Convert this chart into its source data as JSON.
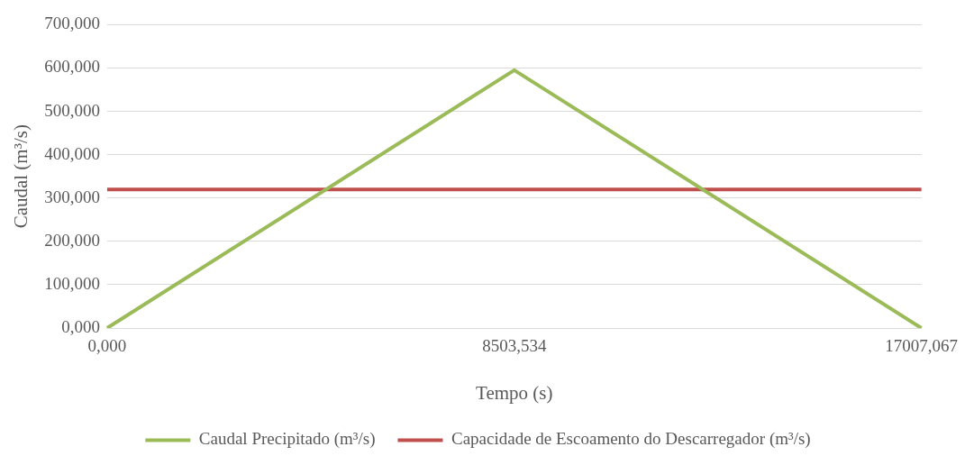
{
  "chart_data": {
    "type": "line",
    "xlabel": "Tempo (s)",
    "ylabel": "Caudal (m³/s)",
    "categories": [
      "0,000",
      "8503,534",
      "17007,067"
    ],
    "series": [
      {
        "name": "Caudal Precipitado (m³/s)",
        "color": "#9bbb59",
        "values": [
          0,
          595,
          0
        ]
      },
      {
        "name": "Capacidade de Escoamento do Descarregador (m³/s)",
        "color": "#c0504d",
        "values": [
          320,
          320,
          320
        ]
      }
    ],
    "ylim": [
      0,
      700
    ],
    "yticks": [
      {
        "value": 0,
        "label": "0,000"
      },
      {
        "value": 100,
        "label": "100,000"
      },
      {
        "value": 200,
        "label": "200,000"
      },
      {
        "value": 300,
        "label": "300,000"
      },
      {
        "value": 400,
        "label": "400,000"
      },
      {
        "value": 500,
        "label": "500,000"
      },
      {
        "value": 600,
        "label": "600,000"
      },
      {
        "value": 700,
        "label": "700,000"
      }
    ],
    "grid": "y",
    "legend": "bottom",
    "marker": "none",
    "line_style": "solid"
  }
}
